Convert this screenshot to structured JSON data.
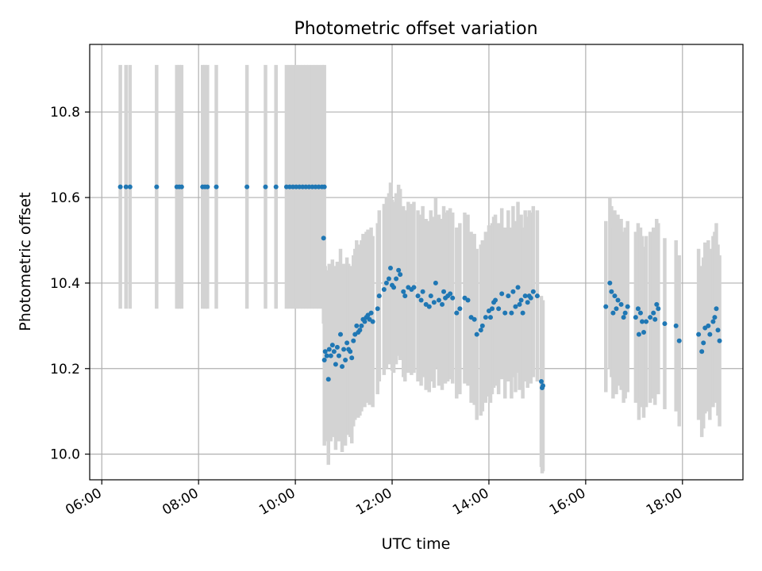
{
  "chart_data": {
    "type": "scatter",
    "title": "Photometric offset variation",
    "xlabel": "UTC time",
    "ylabel": "Photometric offset",
    "xlim": [
      "05:45",
      "19:15"
    ],
    "ylim": [
      9.94,
      10.958
    ],
    "grid": true,
    "colors": {
      "points": "#1f77b4",
      "errorbars": "#d3d3d3",
      "grid": "#b0b0b0"
    },
    "x_ticks": [
      "06:00",
      "08:00",
      "10:00",
      "12:00",
      "14:00",
      "16:00",
      "18:00"
    ],
    "y_ticks": [
      "10.0",
      "10.2",
      "10.4",
      "10.6",
      "10.8"
    ],
    "series": [
      {
        "errorbar_halfwidth": 0.285,
        "points": [
          {
            "x": "06:23",
            "y": 10.625
          },
          {
            "x": "06:30",
            "y": 10.625
          },
          {
            "x": "06:35",
            "y": 10.625
          },
          {
            "x": "07:08",
            "y": 10.625
          },
          {
            "x": "07:33",
            "y": 10.625
          },
          {
            "x": "07:36",
            "y": 10.625
          },
          {
            "x": "07:39",
            "y": 10.625
          },
          {
            "x": "08:05",
            "y": 10.625
          },
          {
            "x": "08:08",
            "y": 10.625
          },
          {
            "x": "08:11",
            "y": 10.625
          },
          {
            "x": "08:22",
            "y": 10.625
          },
          {
            "x": "09:00",
            "y": 10.625
          },
          {
            "x": "09:23",
            "y": 10.625
          },
          {
            "x": "09:36",
            "y": 10.625
          },
          {
            "x": "09:49",
            "y": 10.625
          },
          {
            "x": "09:53",
            "y": 10.625
          },
          {
            "x": "09:57",
            "y": 10.625
          },
          {
            "x": "10:01",
            "y": 10.625
          },
          {
            "x": "10:05",
            "y": 10.625
          },
          {
            "x": "10:09",
            "y": 10.625
          },
          {
            "x": "10:13",
            "y": 10.625
          },
          {
            "x": "10:17",
            "y": 10.625
          },
          {
            "x": "10:21",
            "y": 10.625
          },
          {
            "x": "10:25",
            "y": 10.625
          },
          {
            "x": "10:29",
            "y": 10.625
          },
          {
            "x": "10:33",
            "y": 10.625
          },
          {
            "x": "10:36",
            "y": 10.625
          }
        ]
      },
      {
        "errorbar_halfwidth": 0.2,
        "points": [
          {
            "x": "10:35",
            "y": 10.505
          },
          {
            "x": "10:36",
            "y": 10.22
          },
          {
            "x": "10:37",
            "y": 10.24
          },
          {
            "x": "10:39",
            "y": 10.23
          },
          {
            "x": "10:41",
            "y": 10.175
          },
          {
            "x": "10:42",
            "y": 10.245
          },
          {
            "x": "10:44",
            "y": 10.23
          },
          {
            "x": "10:46",
            "y": 10.255
          },
          {
            "x": "10:48",
            "y": 10.24
          },
          {
            "x": "10:50",
            "y": 10.21
          },
          {
            "x": "10:52",
            "y": 10.25
          },
          {
            "x": "10:54",
            "y": 10.23
          },
          {
            "x": "10:56",
            "y": 10.28
          },
          {
            "x": "10:58",
            "y": 10.205
          },
          {
            "x": "11:00",
            "y": 10.245
          },
          {
            "x": "11:02",
            "y": 10.22
          },
          {
            "x": "11:04",
            "y": 10.26
          },
          {
            "x": "11:06",
            "y": 10.245
          },
          {
            "x": "11:08",
            "y": 10.24
          },
          {
            "x": "11:10",
            "y": 10.225
          },
          {
            "x": "11:12",
            "y": 10.265
          },
          {
            "x": "11:14",
            "y": 10.28
          },
          {
            "x": "11:16",
            "y": 10.3
          },
          {
            "x": "11:18",
            "y": 10.285
          },
          {
            "x": "11:20",
            "y": 10.29
          },
          {
            "x": "11:22",
            "y": 10.3
          },
          {
            "x": "11:24",
            "y": 10.315
          },
          {
            "x": "11:26",
            "y": 10.31
          },
          {
            "x": "11:28",
            "y": 10.32
          },
          {
            "x": "11:30",
            "y": 10.325
          },
          {
            "x": "11:32",
            "y": 10.315
          },
          {
            "x": "11:34",
            "y": 10.33
          },
          {
            "x": "11:36",
            "y": 10.31
          },
          {
            "x": "11:42",
            "y": 10.34
          },
          {
            "x": "11:44",
            "y": 10.37
          },
          {
            "x": "11:50",
            "y": 10.385
          },
          {
            "x": "11:53",
            "y": 10.4
          },
          {
            "x": "11:56",
            "y": 10.41
          },
          {
            "x": "11:58",
            "y": 10.435
          },
          {
            "x": "12:00",
            "y": 10.395
          },
          {
            "x": "12:02",
            "y": 10.39
          },
          {
            "x": "12:05",
            "y": 10.41
          },
          {
            "x": "12:08",
            "y": 10.43
          },
          {
            "x": "12:10",
            "y": 10.42
          },
          {
            "x": "12:14",
            "y": 10.38
          },
          {
            "x": "12:16",
            "y": 10.37
          },
          {
            "x": "12:20",
            "y": 10.39
          },
          {
            "x": "12:24",
            "y": 10.385
          },
          {
            "x": "12:27",
            "y": 10.39
          },
          {
            "x": "12:32",
            "y": 10.37
          },
          {
            "x": "12:36",
            "y": 10.36
          },
          {
            "x": "12:38",
            "y": 10.38
          },
          {
            "x": "12:42",
            "y": 10.35
          },
          {
            "x": "12:46",
            "y": 10.345
          },
          {
            "x": "12:48",
            "y": 10.37
          },
          {
            "x": "12:52",
            "y": 10.355
          },
          {
            "x": "12:54",
            "y": 10.4
          },
          {
            "x": "12:58",
            "y": 10.36
          },
          {
            "x": "13:02",
            "y": 10.35
          },
          {
            "x": "13:04",
            "y": 10.38
          },
          {
            "x": "13:06",
            "y": 10.365
          },
          {
            "x": "13:09",
            "y": 10.37
          },
          {
            "x": "13:12",
            "y": 10.375
          },
          {
            "x": "13:15",
            "y": 10.365
          },
          {
            "x": "13:20",
            "y": 10.33
          },
          {
            "x": "13:24",
            "y": 10.34
          },
          {
            "x": "13:30",
            "y": 10.365
          },
          {
            "x": "13:34",
            "y": 10.36
          },
          {
            "x": "13:38",
            "y": 10.32
          },
          {
            "x": "13:42",
            "y": 10.315
          },
          {
            "x": "13:45",
            "y": 10.28
          },
          {
            "x": "13:50",
            "y": 10.29
          },
          {
            "x": "13:52",
            "y": 10.3
          },
          {
            "x": "13:56",
            "y": 10.32
          },
          {
            "x": "14:00",
            "y": 10.335
          },
          {
            "x": "14:02",
            "y": 10.32
          },
          {
            "x": "14:04",
            "y": 10.34
          },
          {
            "x": "14:06",
            "y": 10.355
          },
          {
            "x": "14:08",
            "y": 10.36
          },
          {
            "x": "14:12",
            "y": 10.34
          },
          {
            "x": "14:16",
            "y": 10.375
          },
          {
            "x": "14:20",
            "y": 10.33
          },
          {
            "x": "14:24",
            "y": 10.37
          },
          {
            "x": "14:28",
            "y": 10.33
          },
          {
            "x": "14:30",
            "y": 10.38
          },
          {
            "x": "14:33",
            "y": 10.345
          },
          {
            "x": "14:36",
            "y": 10.39
          },
          {
            "x": "14:38",
            "y": 10.35
          },
          {
            "x": "14:40",
            "y": 10.36
          },
          {
            "x": "14:42",
            "y": 10.33
          },
          {
            "x": "14:45",
            "y": 10.37
          },
          {
            "x": "14:48",
            "y": 10.355
          },
          {
            "x": "14:50",
            "y": 10.37
          },
          {
            "x": "14:52",
            "y": 10.365
          },
          {
            "x": "14:55",
            "y": 10.38
          },
          {
            "x": "15:00",
            "y": 10.37
          },
          {
            "x": "15:05",
            "y": 10.17
          },
          {
            "x": "15:06",
            "y": 10.155
          },
          {
            "x": "15:07",
            "y": 10.16
          },
          {
            "x": "16:25",
            "y": 10.345
          },
          {
            "x": "16:30",
            "y": 10.4
          },
          {
            "x": "16:32",
            "y": 10.38
          },
          {
            "x": "16:34",
            "y": 10.33
          },
          {
            "x": "16:36",
            "y": 10.37
          },
          {
            "x": "16:38",
            "y": 10.34
          },
          {
            "x": "16:40",
            "y": 10.36
          },
          {
            "x": "16:44",
            "y": 10.35
          },
          {
            "x": "16:47",
            "y": 10.32
          },
          {
            "x": "16:49",
            "y": 10.33
          },
          {
            "x": "16:52",
            "y": 10.345
          },
          {
            "x": "17:02",
            "y": 10.32
          },
          {
            "x": "17:05",
            "y": 10.34
          },
          {
            "x": "17:06",
            "y": 10.28
          },
          {
            "x": "17:08",
            "y": 10.33
          },
          {
            "x": "17:10",
            "y": 10.31
          },
          {
            "x": "17:12",
            "y": 10.285
          },
          {
            "x": "17:15",
            "y": 10.31
          },
          {
            "x": "17:20",
            "y": 10.32
          },
          {
            "x": "17:24",
            "y": 10.33
          },
          {
            "x": "17:26",
            "y": 10.315
          },
          {
            "x": "17:28",
            "y": 10.35
          },
          {
            "x": "17:30",
            "y": 10.34
          },
          {
            "x": "17:38",
            "y": 10.305
          },
          {
            "x": "17:52",
            "y": 10.3
          },
          {
            "x": "17:56",
            "y": 10.265
          },
          {
            "x": "18:20",
            "y": 10.28
          },
          {
            "x": "18:24",
            "y": 10.24
          },
          {
            "x": "18:26",
            "y": 10.26
          },
          {
            "x": "18:28",
            "y": 10.295
          },
          {
            "x": "18:32",
            "y": 10.3
          },
          {
            "x": "18:34",
            "y": 10.28
          },
          {
            "x": "18:38",
            "y": 10.31
          },
          {
            "x": "18:40",
            "y": 10.32
          },
          {
            "x": "18:42",
            "y": 10.34
          },
          {
            "x": "18:44",
            "y": 10.29
          },
          {
            "x": "18:46",
            "y": 10.265
          }
        ]
      }
    ]
  }
}
